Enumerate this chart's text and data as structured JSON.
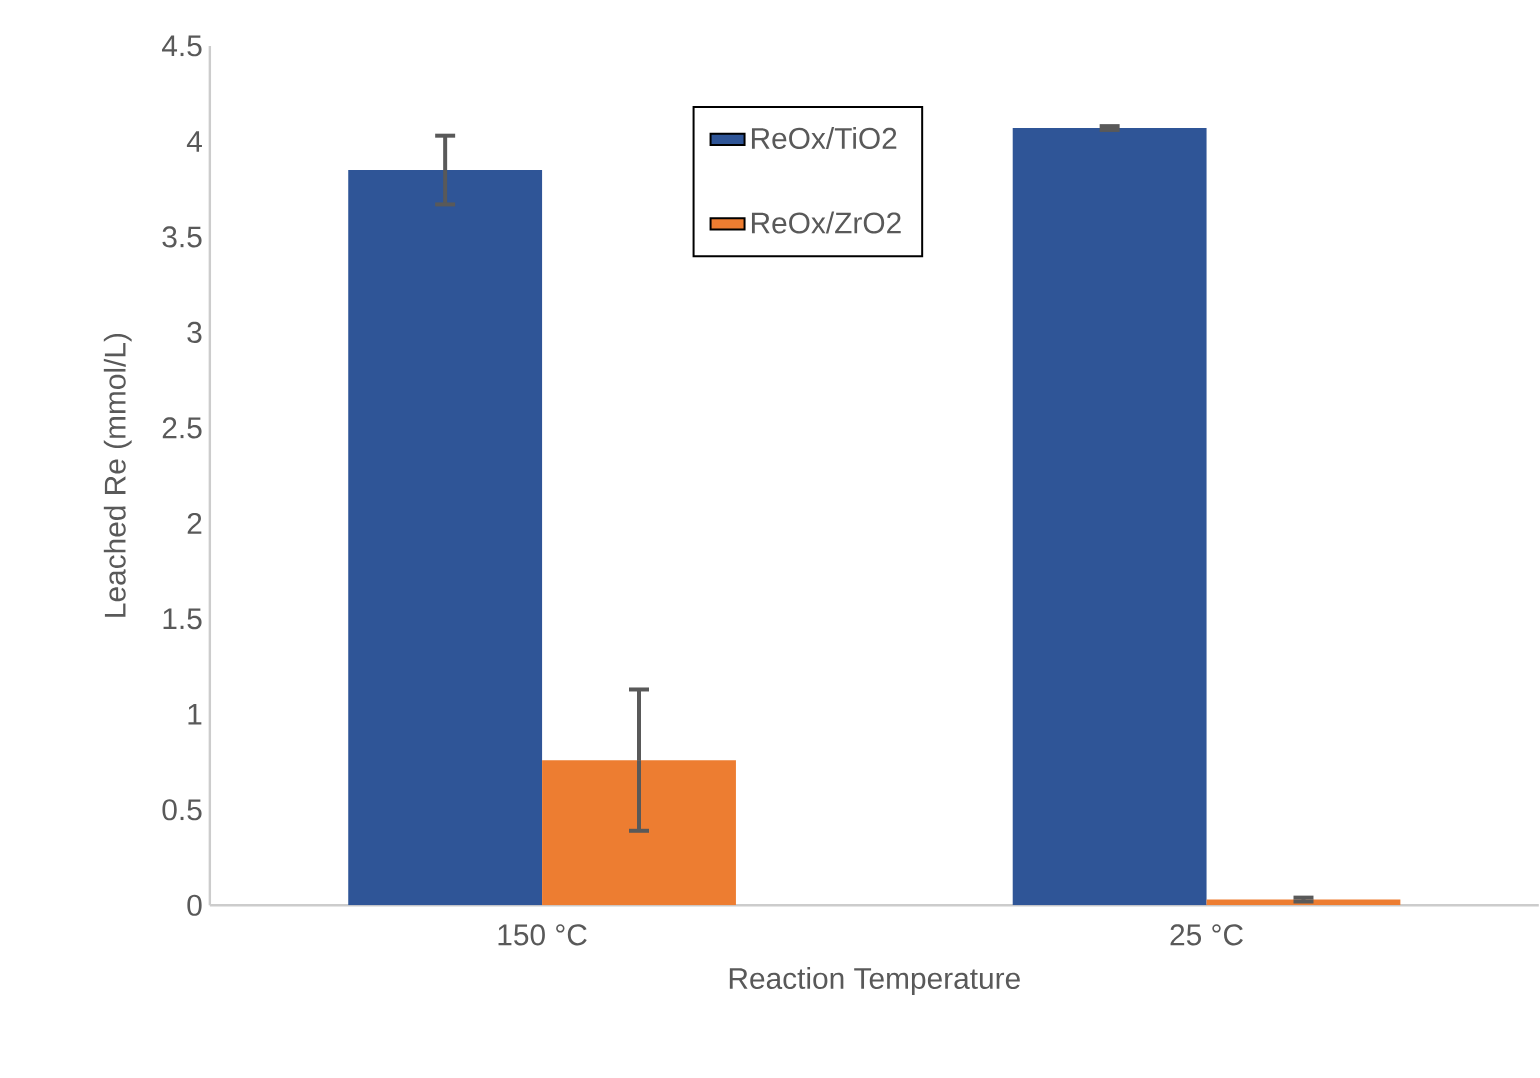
{
  "chart_data": {
    "type": "bar",
    "xlabel": "Reaction Temperature",
    "ylabel": "Leached Re (mmol/L)",
    "categories": [
      "150 °C",
      "25 °C"
    ],
    "series": [
      {
        "name": "ReOx/TiO2",
        "color": "#2f5597",
        "values": [
          3.85,
          4.07
        ],
        "errors": [
          0.18,
          0.01
        ]
      },
      {
        "name": "ReOx/ZrO2",
        "color": "#ed7d31",
        "values": [
          0.76,
          0.03
        ],
        "errors": [
          0.37,
          0.01
        ]
      }
    ],
    "ylim": [
      0,
      4.5
    ],
    "yticks": [
      0,
      0.5,
      1,
      1.5,
      2,
      2.5,
      3,
      3.5,
      4,
      4.5
    ],
    "grid": false,
    "legend": "top"
  }
}
